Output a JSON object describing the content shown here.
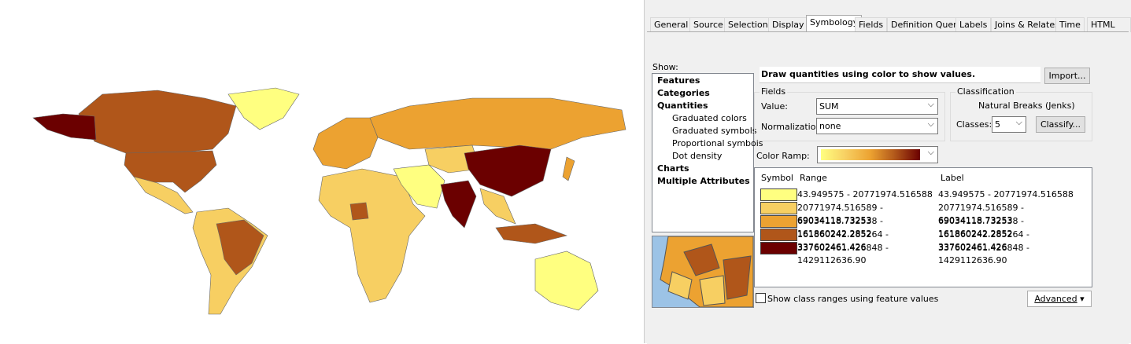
{
  "tabs": [
    "General",
    "Source",
    "Selection",
    "Display",
    "Symbology",
    "Fields",
    "Definition Query",
    "Labels",
    "Joins & Relates",
    "Time",
    "HTML Pop"
  ],
  "show": {
    "label": "Show:",
    "items": [
      "Features",
      "Categories",
      "Quantities",
      "Graduated colors",
      "Graduated symbols",
      "Proportional symbols",
      "Dot density",
      "Charts",
      "Multiple Attributes"
    ]
  },
  "description": "Draw quantities using color to show values.",
  "import_button": "Import...",
  "fields": {
    "title": "Fields",
    "value_label": "Value:",
    "value": "SUM",
    "normalization_label": "Normalization:",
    "normalization": "none"
  },
  "classification": {
    "title": "Classification",
    "method": "Natural Breaks (Jenks)",
    "classes_label": "Classes:",
    "classes": "5",
    "classify_button": "Classify..."
  },
  "color_ramp_label": "Color Ramp:",
  "table": {
    "headers": [
      "Symbol",
      "Range",
      "Label"
    ],
    "rows": [
      {
        "range": "43.949575 - 20771974.516588",
        "label": "43.949575 - 20771974.516588",
        "color": "#ffff80"
      },
      {
        "range": "20771974.516589 - 69034118.73253",
        "label": "20771974.516589 - 69034118.73253",
        "color": "#f7cf62"
      },
      {
        "range": "69034118.732538 - 161860242.2852",
        "label": "69034118.732538 - 161860242.2852",
        "color": "#eca231"
      },
      {
        "range": "161860242.285264 - 337602461.426",
        "label": "161860242.285264 - 337602461.426",
        "color": "#b0561a"
      },
      {
        "range": "337602461.426848 - 1429112636.90",
        "label": "337602461.426848 - 1429112636.90",
        "color": "#6b0000"
      }
    ]
  },
  "checkbox_label": "Show class ranges using feature values",
  "advanced_button": "Advanced"
}
